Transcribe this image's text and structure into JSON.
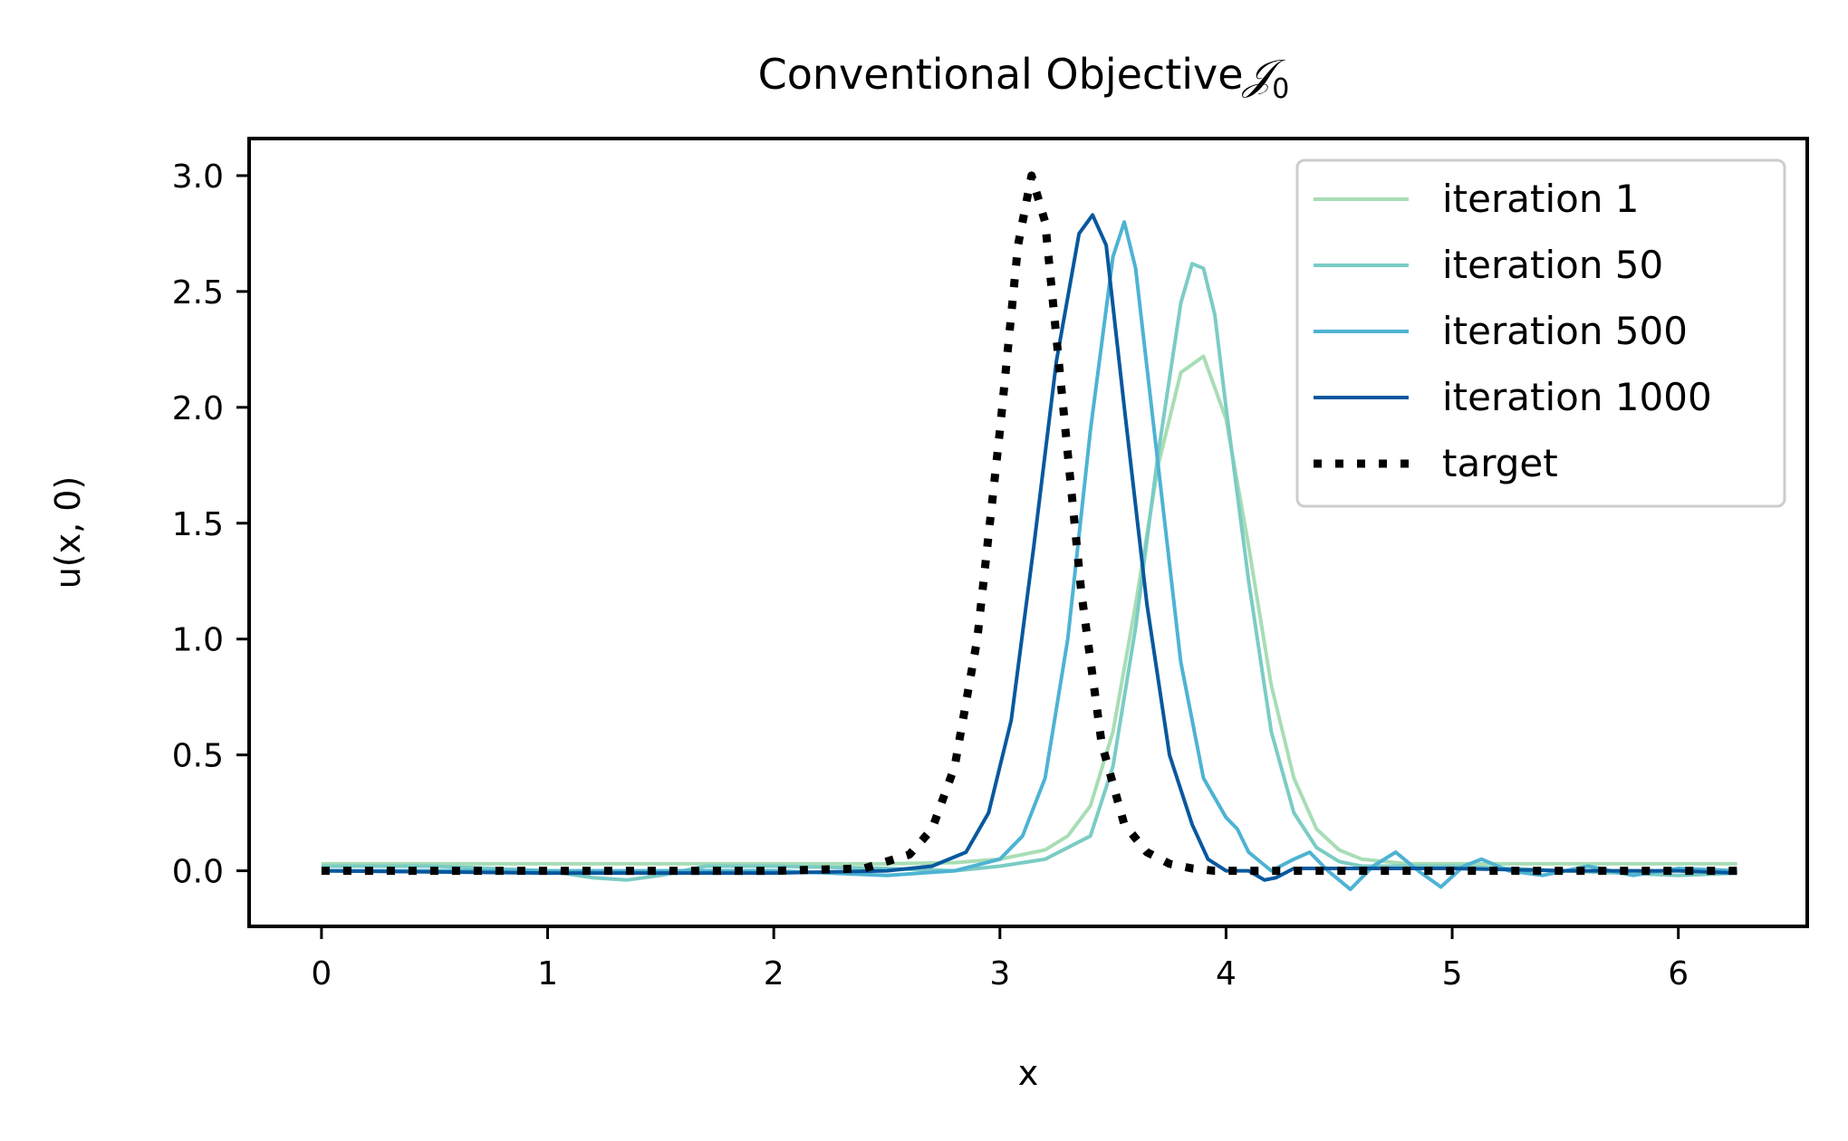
{
  "chart_data": {
    "type": "line",
    "title": "Conventional Objective",
    "title_math": "𝒥",
    "title_math_sub": "0",
    "xlabel": "x",
    "ylabel": "u(x, 0)",
    "xlim": [
      -0.32,
      6.57
    ],
    "ylim": [
      -0.24,
      3.16
    ],
    "xticks": [
      0,
      1,
      2,
      3,
      4,
      5,
      6
    ],
    "xtick_labels": [
      "0",
      "1",
      "2",
      "3",
      "4",
      "5",
      "6"
    ],
    "yticks": [
      0.0,
      0.5,
      1.0,
      1.5,
      2.0,
      2.5,
      3.0
    ],
    "ytick_labels": [
      "0.0",
      "0.5",
      "1.0",
      "1.5",
      "2.0",
      "2.5",
      "3.0"
    ],
    "grid": false,
    "legend_position": "top-right",
    "series": [
      {
        "name": "iteration 1",
        "color": "#a8ddb5",
        "style": "solid",
        "x": [
          0,
          0.5,
          1.0,
          1.5,
          2.0,
          2.5,
          2.8,
          3.0,
          3.2,
          3.3,
          3.4,
          3.5,
          3.6,
          3.7,
          3.8,
          3.9,
          4.0,
          4.1,
          4.2,
          4.3,
          4.4,
          4.5,
          4.6,
          4.8,
          5.0,
          5.5,
          6.0,
          6.26
        ],
        "y": [
          0.03,
          0.03,
          0.03,
          0.03,
          0.03,
          0.03,
          0.035,
          0.05,
          0.09,
          0.15,
          0.28,
          0.6,
          1.15,
          1.75,
          2.15,
          2.22,
          1.95,
          1.4,
          0.8,
          0.4,
          0.18,
          0.09,
          0.05,
          0.03,
          0.03,
          0.03,
          0.03,
          0.03
        ]
      },
      {
        "name": "iteration 50",
        "color": "#7bccc4",
        "style": "solid",
        "x": [
          0,
          0.5,
          1.0,
          1.2,
          1.35,
          1.5,
          1.7,
          2.0,
          2.5,
          2.8,
          3.0,
          3.2,
          3.4,
          3.5,
          3.6,
          3.7,
          3.8,
          3.85,
          3.9,
          3.95,
          4.0,
          4.1,
          4.2,
          4.3,
          4.4,
          4.5,
          4.6,
          4.8,
          5.0,
          5.5,
          6.0,
          6.26
        ],
        "y": [
          0.02,
          0.02,
          0.0,
          -0.03,
          -0.04,
          -0.02,
          0.02,
          0.02,
          0.01,
          0.0,
          0.02,
          0.05,
          0.15,
          0.45,
          1.05,
          1.8,
          2.45,
          2.62,
          2.6,
          2.4,
          2.0,
          1.25,
          0.6,
          0.25,
          0.1,
          0.04,
          0.02,
          0.02,
          0.02,
          0.0,
          -0.02,
          -0.01
        ]
      },
      {
        "name": "iteration 500",
        "color": "#4eb3d3",
        "style": "solid",
        "x": [
          0,
          1.0,
          2.0,
          2.5,
          2.8,
          3.0,
          3.1,
          3.2,
          3.3,
          3.4,
          3.5,
          3.55,
          3.6,
          3.7,
          3.8,
          3.9,
          4.0,
          4.05,
          4.1,
          4.2,
          4.3,
          4.37,
          4.45,
          4.55,
          4.65,
          4.75,
          4.85,
          4.95,
          5.05,
          5.13,
          5.25,
          5.4,
          5.6,
          5.8,
          6.0,
          6.26
        ],
        "y": [
          0.0,
          0.0,
          0.0,
          -0.02,
          0.0,
          0.05,
          0.15,
          0.4,
          1.0,
          1.9,
          2.65,
          2.8,
          2.6,
          1.75,
          0.9,
          0.4,
          0.23,
          0.18,
          0.08,
          0.0,
          0.05,
          0.08,
          0.0,
          -0.08,
          0.02,
          0.08,
          0.0,
          -0.07,
          0.02,
          0.05,
          0.0,
          -0.02,
          0.02,
          -0.02,
          0.01,
          0.0
        ]
      },
      {
        "name": "iteration 1000",
        "color": "#08589e",
        "style": "solid",
        "x": [
          0,
          1.0,
          2.0,
          2.5,
          2.7,
          2.85,
          2.95,
          3.05,
          3.15,
          3.25,
          3.35,
          3.41,
          3.47,
          3.55,
          3.65,
          3.75,
          3.85,
          3.92,
          4.0,
          4.1,
          4.17,
          4.22,
          4.3,
          4.5,
          5.0,
          5.5,
          6.0,
          6.26
        ],
        "y": [
          0.0,
          -0.01,
          -0.01,
          0.0,
          0.02,
          0.08,
          0.25,
          0.65,
          1.4,
          2.2,
          2.75,
          2.83,
          2.7,
          2.0,
          1.15,
          0.5,
          0.2,
          0.05,
          0.0,
          0.0,
          -0.04,
          -0.03,
          0.01,
          0.01,
          0.01,
          0.0,
          0.0,
          -0.01
        ]
      },
      {
        "name": "target",
        "color": "#000000",
        "style": "dotted",
        "x": [
          0,
          0.5,
          1.0,
          1.5,
          2.0,
          2.4,
          2.6,
          2.7,
          2.8,
          2.9,
          3.0,
          3.08,
          3.14,
          3.2,
          3.28,
          3.36,
          3.45,
          3.55,
          3.65,
          3.75,
          3.85,
          3.95,
          4.1,
          4.5,
          5.0,
          5.5,
          6.0,
          6.26
        ],
        "y": [
          0.0,
          0.0,
          0.0,
          0.0,
          0.0,
          0.01,
          0.07,
          0.18,
          0.45,
          1.0,
          1.9,
          2.7,
          3.0,
          2.8,
          2.0,
          1.2,
          0.55,
          0.2,
          0.08,
          0.03,
          0.01,
          0.0,
          0.0,
          0.0,
          0.0,
          0.0,
          0.0,
          0.0
        ]
      }
    ]
  }
}
